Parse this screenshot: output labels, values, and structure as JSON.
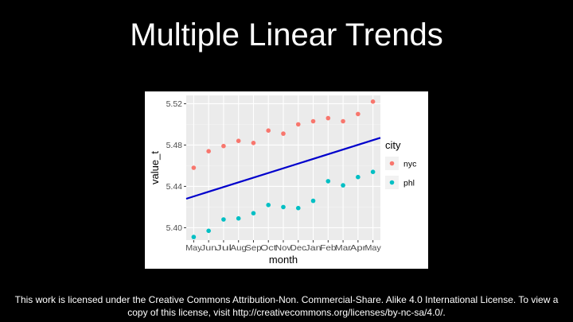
{
  "slide": {
    "title": "Multiple Linear Trends",
    "license_line1": "This work is licensed under the Creative Commons Attribution-Non. Commercial-Share. Alike 4.0 International License. To view a",
    "license_line2": "copy of this license, visit http://creativecommons.org/licenses/by-nc-sa/4.0/."
  },
  "chart_data": {
    "type": "scatter",
    "title": "",
    "xlabel": "month",
    "ylabel": "value_t",
    "categories": [
      "May",
      "Jun",
      "Jul",
      "Aug",
      "Sep",
      "Oct",
      "Nov",
      "Dec",
      "Jan",
      "Feb",
      "Mar",
      "Apr",
      "May"
    ],
    "ylim": [
      5.388,
      5.528
    ],
    "yticks": [
      5.4,
      5.44,
      5.48,
      5.52
    ],
    "ytick_labels": [
      "5.40",
      "5.44",
      "5.48",
      "5.52"
    ],
    "legend": {
      "title": "city",
      "position": "right"
    },
    "grid": true,
    "series": [
      {
        "name": "nyc",
        "color": "#F8766D",
        "values": [
          5.458,
          5.474,
          5.479,
          5.484,
          5.482,
          5.494,
          5.491,
          5.5,
          5.503,
          5.506,
          5.503,
          5.51,
          5.522
        ]
      },
      {
        "name": "phl",
        "color": "#00BFC4",
        "values": [
          5.391,
          5.397,
          5.408,
          5.409,
          5.414,
          5.422,
          5.42,
          5.419,
          5.426,
          5.445,
          5.441,
          5.449,
          5.454
        ]
      }
    ],
    "trend": {
      "color": "#0000CC",
      "start": 5.428,
      "end": 5.487
    },
    "colors": {
      "panel": "#EBEBEB",
      "grid_major": "#FFFFFF"
    }
  }
}
